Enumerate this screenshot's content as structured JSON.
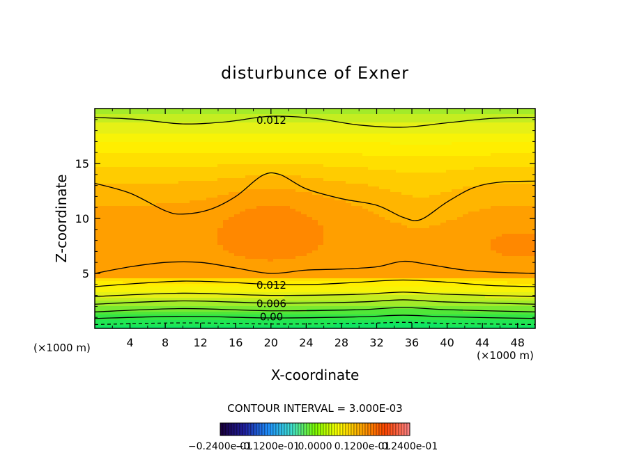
{
  "chart_data": {
    "type": "heatmap",
    "title": "disturbunce of Exner",
    "xlabel": "X-coordinate",
    "ylabel": "Z-coordinate",
    "x_unit": "(×1000 m)",
    "z_unit": "(×1000 m)",
    "xlim": [
      0,
      50
    ],
    "ylim": [
      0,
      20
    ],
    "x_ticks": [
      "4",
      "8",
      "12",
      "16",
      "20",
      "24",
      "28",
      "32",
      "36",
      "40",
      "44",
      "48"
    ],
    "y_ticks": [
      "5",
      "10",
      "15"
    ],
    "contour_interval_text": "CONTOUR INTERVAL = 3.000E-03",
    "contour_labels": [
      {
        "text": "0.012",
        "x": 18,
        "z": 19.0
      },
      {
        "text": "0.012",
        "x": 18,
        "z": 4.0
      },
      {
        "text": "0.006",
        "x": 18,
        "z": 2.3
      },
      {
        "text": "0.00",
        "x": 18,
        "z": 1.1
      }
    ],
    "contour_lines": [
      {
        "value": 0.012,
        "points": [
          [
            0,
            19.2
          ],
          [
            5,
            19.0
          ],
          [
            10,
            18.6
          ],
          [
            15,
            18.8
          ],
          [
            20,
            19.3
          ],
          [
            25,
            19.1
          ],
          [
            30,
            18.5
          ],
          [
            35,
            18.3
          ],
          [
            40,
            18.7
          ],
          [
            45,
            19.1
          ],
          [
            50,
            19.2
          ]
        ]
      },
      {
        "value": 0.015,
        "points": [
          [
            0,
            13.2
          ],
          [
            4,
            12.3
          ],
          [
            8,
            10.7
          ],
          [
            10,
            10.4
          ],
          [
            13,
            10.8
          ],
          [
            16,
            12.0
          ],
          [
            19,
            13.9
          ],
          [
            21,
            14.0
          ],
          [
            24,
            12.7
          ],
          [
            28,
            11.8
          ],
          [
            32,
            11.2
          ],
          [
            35,
            10.1
          ],
          [
            37,
            9.9
          ],
          [
            40,
            11.5
          ],
          [
            43,
            12.8
          ],
          [
            46,
            13.3
          ],
          [
            50,
            13.4
          ]
        ]
      },
      {
        "value": 0.015,
        "points": [
          [
            0,
            5.0
          ],
          [
            4,
            5.6
          ],
          [
            8,
            6.0
          ],
          [
            12,
            6.0
          ],
          [
            16,
            5.5
          ],
          [
            20,
            5.0
          ],
          [
            24,
            5.3
          ],
          [
            28,
            5.4
          ],
          [
            32,
            5.6
          ],
          [
            35,
            6.1
          ],
          [
            38,
            5.8
          ],
          [
            42,
            5.3
          ],
          [
            46,
            5.1
          ],
          [
            50,
            5.0
          ]
        ]
      },
      {
        "value": 0.012,
        "points": [
          [
            0,
            3.8
          ],
          [
            5,
            4.1
          ],
          [
            10,
            4.3
          ],
          [
            15,
            4.2
          ],
          [
            20,
            4.0
          ],
          [
            25,
            4.0
          ],
          [
            30,
            4.2
          ],
          [
            35,
            4.4
          ],
          [
            40,
            4.2
          ],
          [
            45,
            3.9
          ],
          [
            50,
            3.8
          ]
        ]
      },
      {
        "value": 0.009,
        "points": [
          [
            0,
            2.9
          ],
          [
            10,
            3.2
          ],
          [
            20,
            3.0
          ],
          [
            30,
            3.1
          ],
          [
            35,
            3.3
          ],
          [
            40,
            3.1
          ],
          [
            50,
            2.9
          ]
        ]
      },
      {
        "value": 0.006,
        "points": [
          [
            0,
            2.2
          ],
          [
            10,
            2.5
          ],
          [
            20,
            2.3
          ],
          [
            30,
            2.4
          ],
          [
            35,
            2.6
          ],
          [
            40,
            2.4
          ],
          [
            50,
            2.2
          ]
        ]
      },
      {
        "value": 0.003,
        "points": [
          [
            0,
            1.5
          ],
          [
            10,
            1.8
          ],
          [
            20,
            1.6
          ],
          [
            30,
            1.7
          ],
          [
            35,
            1.9
          ],
          [
            40,
            1.7
          ],
          [
            50,
            1.5
          ]
        ]
      },
      {
        "value": 0.0,
        "points": [
          [
            0,
            0.9
          ],
          [
            10,
            1.1
          ],
          [
            20,
            0.95
          ],
          [
            30,
            1.05
          ],
          [
            35,
            1.2
          ],
          [
            40,
            1.05
          ],
          [
            50,
            0.9
          ]
        ]
      },
      {
        "value": -0.003,
        "dashed": true,
        "points": [
          [
            0,
            0.35
          ],
          [
            10,
            0.5
          ],
          [
            20,
            0.4
          ],
          [
            30,
            0.45
          ],
          [
            35,
            0.55
          ],
          [
            40,
            0.45
          ],
          [
            50,
            0.35
          ]
        ]
      }
    ],
    "colorbar_labels": [
      "−0.2400e-01",
      "−0.1200e-01",
      "0.0000",
      "0.1200e-01",
      "0.2400e-01"
    ],
    "colorbar_range": [
      -0.024,
      0.024
    ],
    "colorbar_stops": [
      "#1a0040",
      "#2020a0",
      "#1e90ff",
      "#40e0d0",
      "#7cfc00",
      "#ffff00",
      "#ffa500",
      "#ff4500",
      "#ff8080"
    ]
  }
}
